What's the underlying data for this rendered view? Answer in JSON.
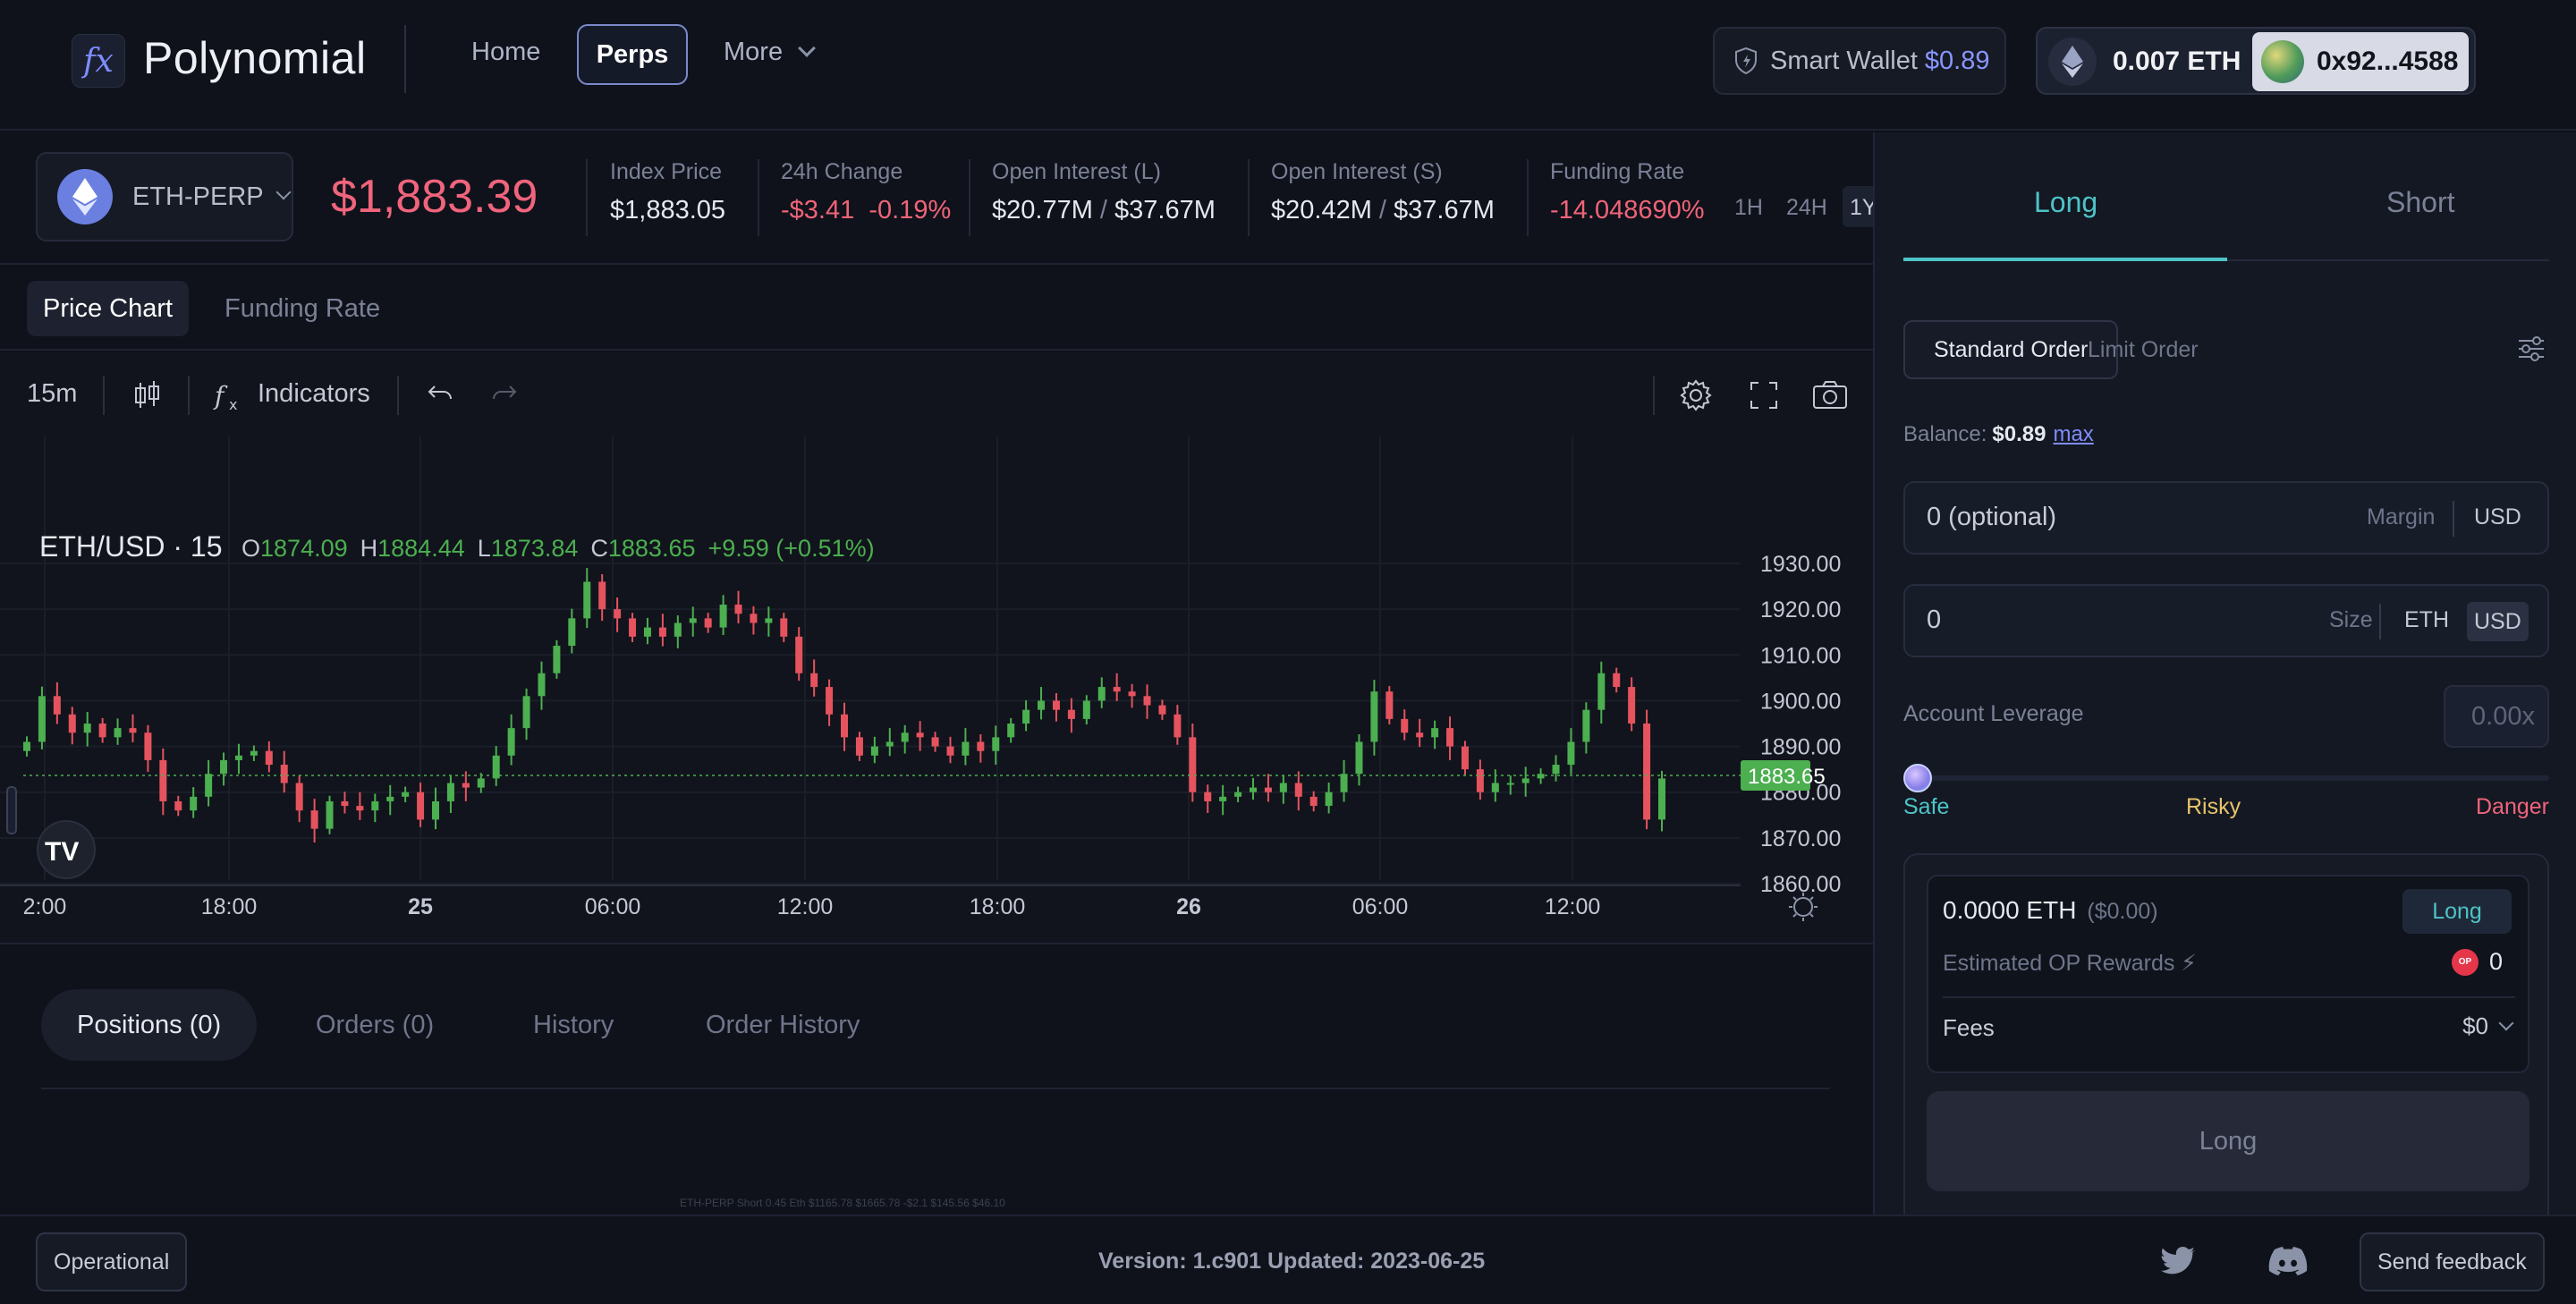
{
  "topnav": {
    "logo_glyph": "fx",
    "app_name": "Polynomial",
    "links": {
      "home": "Home",
      "perps": "Perps",
      "more": "More"
    },
    "smart_wallet": {
      "label": "Smart Wallet",
      "value": "$0.89"
    },
    "wallet": {
      "eth_balance": "0.007 ETH",
      "address": "0x92...4588"
    }
  },
  "market": {
    "symbol": "ETH-PERP",
    "price": "$1,883.39",
    "index_price": {
      "label": "Index Price",
      "value": "$1,883.05"
    },
    "change_24h": {
      "label": "24h Change",
      "abs": "-$3.41",
      "pct": "-0.19%"
    },
    "oi_long": {
      "label": "Open Interest (L)",
      "a": "$20.77M",
      "b": "$37.67M"
    },
    "oi_short": {
      "label": "Open Interest (S)",
      "a": "$20.42M",
      "b": "$37.67M"
    },
    "funding": {
      "label": "Funding Rate",
      "value": "-14.048690%"
    },
    "timeframes": [
      "1H",
      "24H",
      "1Y"
    ]
  },
  "chart_tabs": {
    "price_chart": "Price Chart",
    "funding_rate": "Funding Rate"
  },
  "chart_toolbar": {
    "interval": "15m",
    "indicators": "Indicators"
  },
  "chart_data": {
    "type": "candlestick",
    "title": "ETH/USD · 15",
    "ohlc": {
      "o_label": "O",
      "o": "1874.09",
      "h_label": "H",
      "h": "1884.44",
      "l_label": "L",
      "l": "1873.84",
      "c_label": "C",
      "c": "1883.65",
      "change": "+9.59 (+0.51%)"
    },
    "last_price": "1883.65",
    "ylim": [
      1860,
      1930
    ],
    "y_ticks": [
      "1930.00",
      "1920.00",
      "1910.00",
      "1900.00",
      "1890.00",
      "1880.00",
      "1870.00",
      "1860.00"
    ],
    "x_ticks": [
      "2:00",
      "18:00",
      "25",
      "06:00",
      "12:00",
      "18:00",
      "26",
      "06:00",
      "12:00"
    ],
    "x_ticks_bold": [
      false,
      false,
      true,
      false,
      false,
      false,
      true,
      false,
      false
    ],
    "up_color": "#4caf50",
    "down_color": "#e5535f",
    "closes": [
      1891,
      1901,
      1897,
      1893,
      1895,
      1892,
      1894,
      1893,
      1887,
      1878,
      1876,
      1879,
      1884,
      1887,
      1888,
      1889,
      1886,
      1882,
      1876,
      1872,
      1878,
      1877,
      1876,
      1878,
      1879,
      1880,
      1874,
      1878,
      1882,
      1881,
      1883,
      1888,
      1894,
      1901,
      1906,
      1912,
      1918,
      1926,
      1920,
      1918,
      1914,
      1916,
      1914,
      1917,
      1918,
      1916,
      1921,
      1919,
      1917,
      1918,
      1914,
      1906,
      1903,
      1897,
      1892,
      1888,
      1890,
      1891,
      1893,
      1892,
      1890,
      1888,
      1891,
      1889,
      1892,
      1895,
      1898,
      1900,
      1898,
      1896,
      1900,
      1903,
      1902,
      1901,
      1899,
      1897,
      1892,
      1880,
      1878,
      1879,
      1880,
      1881,
      1880,
      1882,
      1879,
      1877,
      1880,
      1884,
      1891,
      1902,
      1896,
      1893,
      1892,
      1894,
      1890,
      1885,
      1880,
      1882,
      1882,
      1883,
      1884,
      1886,
      1891,
      1898,
      1906,
      1903,
      1895,
      1874,
      1883
    ]
  },
  "positions": {
    "tabs": {
      "positions": "Positions  (0)",
      "orders": "Orders  (0)",
      "history": "History",
      "order_history": "Order History"
    },
    "ghost_row": "ETH-PERP  Short   0.45 Eth   $1165.78   $1665.78   -$2.1   $145.56   $46.10"
  },
  "order_panel": {
    "side_long": "Long",
    "side_short": "Short",
    "standard_order": "Standard Order",
    "limit_order": "Limit Order",
    "balance_label": "Balance:",
    "balance_value": "$0.89",
    "max_label": "max",
    "margin": {
      "value": "0 (optional)",
      "label": "Margin",
      "unit": "USD"
    },
    "size": {
      "value": "0",
      "label": "Size",
      "unit_eth": "ETH",
      "unit_usd": "USD"
    },
    "leverage": {
      "label": "Account Leverage",
      "value": "0.00x",
      "level": 0,
      "safe": "Safe",
      "risky": "Risky",
      "danger": "Danger"
    },
    "summary": {
      "eth": "0.0000 ETH",
      "usd": "($0.00)",
      "side_badge": "Long",
      "op_label": "Estimated OP Rewards ⚡",
      "op_badge": "OP",
      "op_value": "0",
      "fees_label": "Fees",
      "fees_value": "$0",
      "submit": "Long"
    }
  },
  "footer": {
    "status": "Operational",
    "version": "Version: 1.c901 Updated: 2023-06-25",
    "feedback": "Send feedback"
  }
}
